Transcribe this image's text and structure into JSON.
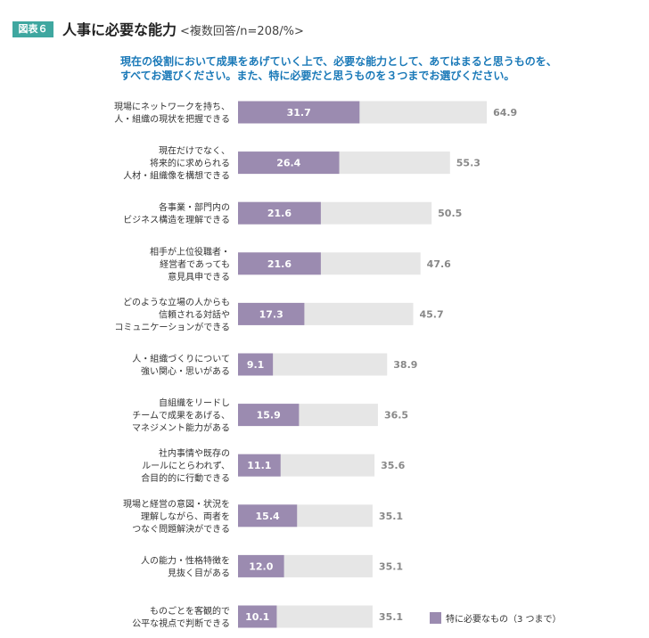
{
  "figure_label": "図表６",
  "title": "人事に必要な能力",
  "subtitle": "<複数回答/n=208/%>",
  "question_lines": [
    "現在の役割において成果をあげていく上で、必要な能力として、あてはまると思うものを、",
    "すべてお選びください。また、特に必要だと思うものを３つまでお選びください。"
  ],
  "legend_label": "特に必要なもの（3 つまで）",
  "colors": {
    "primary": "#9b8bb0",
    "secondary": "#e6e6e6",
    "badge": "#3fa7a0",
    "question": "#1a79b8",
    "total_label": "#888888"
  },
  "chart_data": {
    "type": "bar",
    "orientation": "horizontal",
    "xlim": [
      0,
      70
    ],
    "grid": false,
    "legend_position": "bottom-right",
    "categories": [
      [
        "現場にネットワークを持ち、",
        "人・組織の現状を把握できる"
      ],
      [
        "現在だけでなく、",
        "将来的に求められる",
        "人材・組織像を構想できる"
      ],
      [
        "各事業・部門内の",
        "ビジネス構造を理解できる"
      ],
      [
        "相手が上位役職者・",
        "経営者であっても",
        "意見具申できる"
      ],
      [
        "どのような立場の人からも",
        "信頼される対話や",
        "コミュニケーションができる"
      ],
      [
        "人・組織づくりについて",
        "強い関心・思いがある"
      ],
      [
        "自組織をリードし",
        "チームで成果をあげる、",
        "マネジメント能力がある"
      ],
      [
        "社内事情や既存の",
        "ルールにとらわれず、",
        "合目的的に行動できる"
      ],
      [
        "現場と経営の意図・状況を",
        "理解しながら、両者を",
        "つなぐ問題解決ができる"
      ],
      [
        "人の能力・性格特徴を",
        "見抜く目がある"
      ],
      [
        "ものごとを客観的で",
        "公平な視点で判断できる"
      ]
    ],
    "series": [
      {
        "name": "特に必要なもの（3 つまで）",
        "values": [
          31.7,
          26.4,
          21.6,
          21.6,
          17.3,
          9.1,
          15.9,
          11.1,
          15.4,
          12.0,
          10.1
        ]
      },
      {
        "values": [
          64.9,
          55.3,
          50.5,
          47.6,
          45.7,
          38.9,
          36.5,
          35.6,
          35.1,
          35.1,
          35.1
        ]
      }
    ],
    "value_labels_primary": [
      "31.7",
      "26.4",
      "21.6",
      "21.6",
      "17.3",
      "9.1",
      "15.9",
      "11.1",
      "15.4",
      "12.0",
      "10.1"
    ],
    "value_labels_total": [
      "64.9",
      "55.3",
      "50.5",
      "47.6",
      "45.7",
      "38.9",
      "36.5",
      "35.6",
      "35.1",
      "35.1",
      "35.1"
    ]
  }
}
